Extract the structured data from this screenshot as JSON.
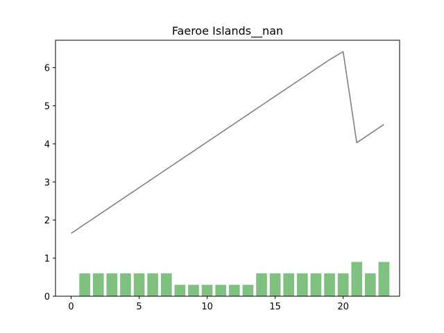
{
  "chart_data": {
    "type": "bar+line",
    "title": "Faeroe Islands__nan",
    "xlabel": "",
    "ylabel": "",
    "xlim": [
      -1.15,
      24.15
    ],
    "ylim": [
      0,
      6.72
    ],
    "xticks": [
      0,
      5,
      10,
      15,
      20
    ],
    "yticks": [
      0,
      1,
      2,
      3,
      4,
      5,
      6
    ],
    "grid": false,
    "bars": {
      "color": "#80c080",
      "x": [
        1,
        2,
        3,
        4,
        5,
        6,
        7,
        8,
        9,
        10,
        11,
        12,
        13,
        14,
        15,
        16,
        17,
        18,
        19,
        20,
        21,
        22,
        23
      ],
      "values": [
        0.6,
        0.6,
        0.6,
        0.6,
        0.6,
        0.6,
        0.6,
        0.3,
        0.3,
        0.3,
        0.3,
        0.3,
        0.3,
        0.6,
        0.6,
        0.6,
        0.6,
        0.6,
        0.6,
        0.6,
        0.9,
        0.6,
        0.9
      ]
    },
    "line": {
      "color": "#808080",
      "x": [
        0,
        1,
        2,
        3,
        4,
        5,
        6,
        7,
        8,
        9,
        10,
        11,
        12,
        13,
        14,
        15,
        16,
        17,
        18,
        19,
        20,
        21,
        22,
        23
      ],
      "values": [
        1.65,
        1.89,
        2.13,
        2.37,
        2.61,
        2.85,
        3.09,
        3.33,
        3.57,
        3.81,
        4.05,
        4.29,
        4.53,
        4.77,
        5.01,
        5.25,
        5.49,
        5.73,
        5.97,
        6.21,
        6.42,
        4.03,
        4.27,
        4.51
      ]
    }
  }
}
